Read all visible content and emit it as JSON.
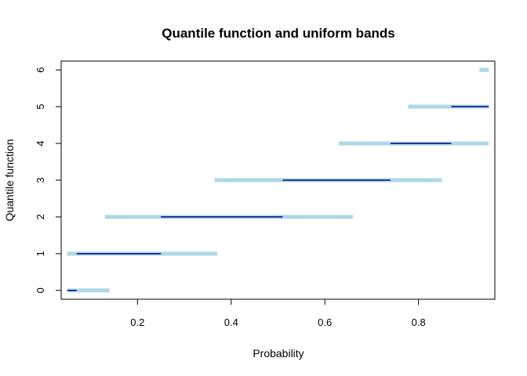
{
  "chart_data": {
    "type": "line",
    "title": "Quantile function and uniform bands",
    "xlabel": "Probability",
    "ylabel": "Quantile function",
    "xlim": [
      0.037,
      0.963
    ],
    "ylim": [
      -0.24,
      6.24
    ],
    "x_ticks": [
      "0.2",
      "0.4",
      "0.6",
      "0.8"
    ],
    "x_tick_values": [
      0.2,
      0.4,
      0.6,
      0.8
    ],
    "y_ticks": [
      "0",
      "1",
      "2",
      "3",
      "4",
      "5",
      "6"
    ],
    "y_tick_values": [
      0,
      1,
      2,
      3,
      4,
      5,
      6
    ],
    "grid": false,
    "series": [
      {
        "color": "#add8e6",
        "segments": [
          {
            "y": 0,
            "x0": 0.05,
            "x1": 0.14
          },
          {
            "y": 1,
            "x0": 0.05,
            "x1": 0.37
          },
          {
            "y": 2,
            "x0": 0.13,
            "x1": 0.66
          },
          {
            "y": 3,
            "x0": 0.365,
            "x1": 0.85
          },
          {
            "y": 4,
            "x0": 0.63,
            "x1": 0.95
          },
          {
            "y": 5,
            "x0": 0.778,
            "x1": 0.95
          },
          {
            "y": 6,
            "x0": 0.93,
            "x1": 0.95
          }
        ]
      },
      {
        "color": "#00008b",
        "segments": [
          {
            "y": 0,
            "x0": 0.05,
            "x1": 0.07
          },
          {
            "y": 1,
            "x0": 0.07,
            "x1": 0.25
          },
          {
            "y": 2,
            "x0": 0.25,
            "x1": 0.51
          },
          {
            "y": 3,
            "x0": 0.51,
            "x1": 0.74
          },
          {
            "y": 4,
            "x0": 0.74,
            "x1": 0.87
          },
          {
            "y": 5,
            "x0": 0.87,
            "x1": 0.95
          }
        ]
      }
    ]
  }
}
